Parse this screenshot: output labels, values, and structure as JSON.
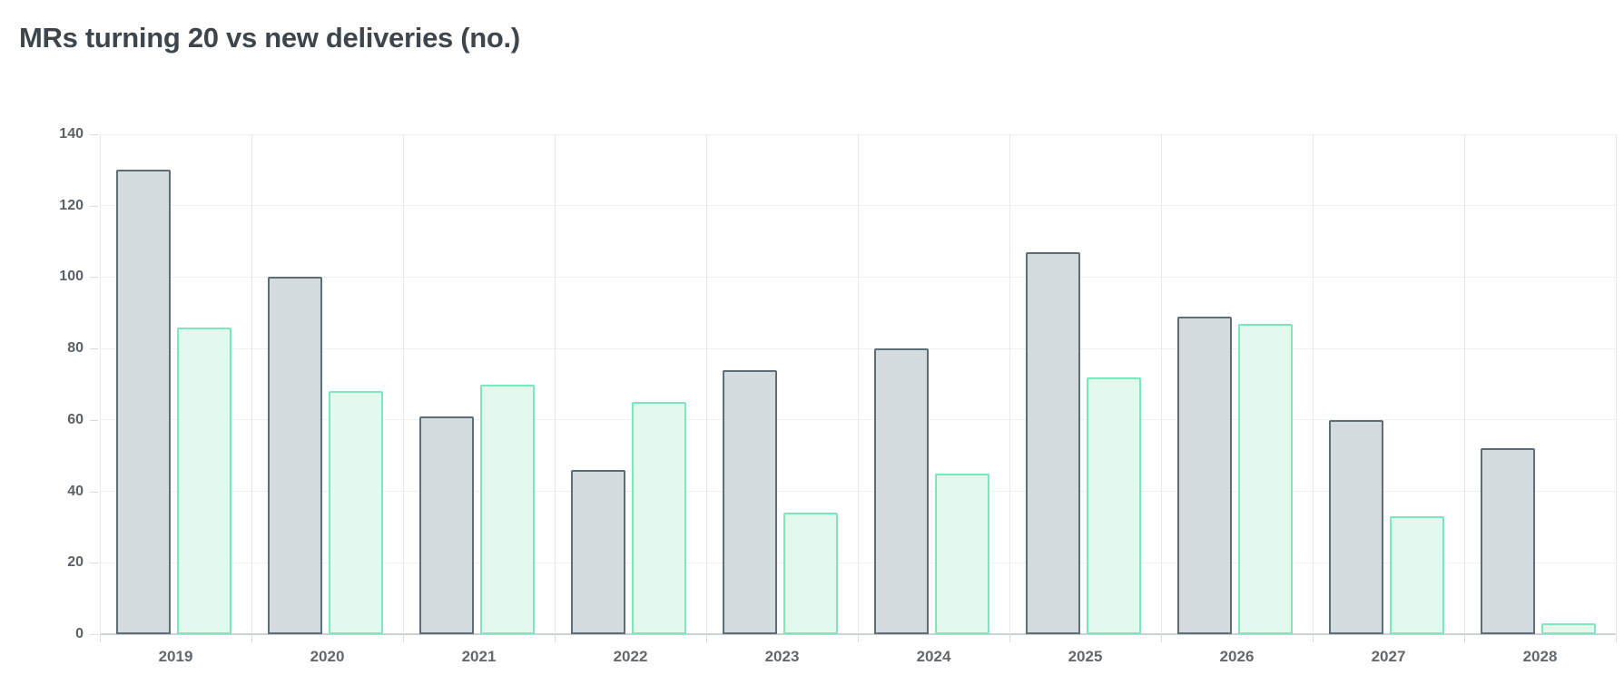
{
  "header": {
    "title": "MRs turning 20 vs new deliveries (no.)"
  },
  "chart_data": {
    "type": "bar",
    "title": "MRs turning 20 vs new deliveries (no.)",
    "categories": [
      "2019",
      "2020",
      "2021",
      "2022",
      "2023",
      "2024",
      "2025",
      "2026",
      "2027",
      "2028"
    ],
    "series": [
      {
        "name": "MRs turning 20",
        "fill": "#d4dbde",
        "border": "#5d6e77",
        "values": [
          130,
          100,
          61,
          46,
          74,
          80,
          107,
          89,
          60,
          52
        ]
      },
      {
        "name": "new deliveries",
        "fill": "#e3f9ee",
        "border": "#7ce6bd",
        "values": [
          86,
          68,
          70,
          65,
          34,
          45,
          72,
          87,
          33,
          3
        ]
      }
    ],
    "xlabel": "",
    "ylabel": "",
    "ylim": [
      0,
      140
    ],
    "yticks": [
      0,
      20,
      40,
      60,
      80,
      100,
      120,
      140
    ],
    "grid": {
      "horizontal": true,
      "vertical_group_separators": true
    },
    "legend_position": "none",
    "colors": {
      "title_text": "#3e464c",
      "tick_label_text": "#5b6166",
      "gridline": "#efefef",
      "axis_line": "#ccd1d4",
      "background": "#ffffff"
    }
  }
}
